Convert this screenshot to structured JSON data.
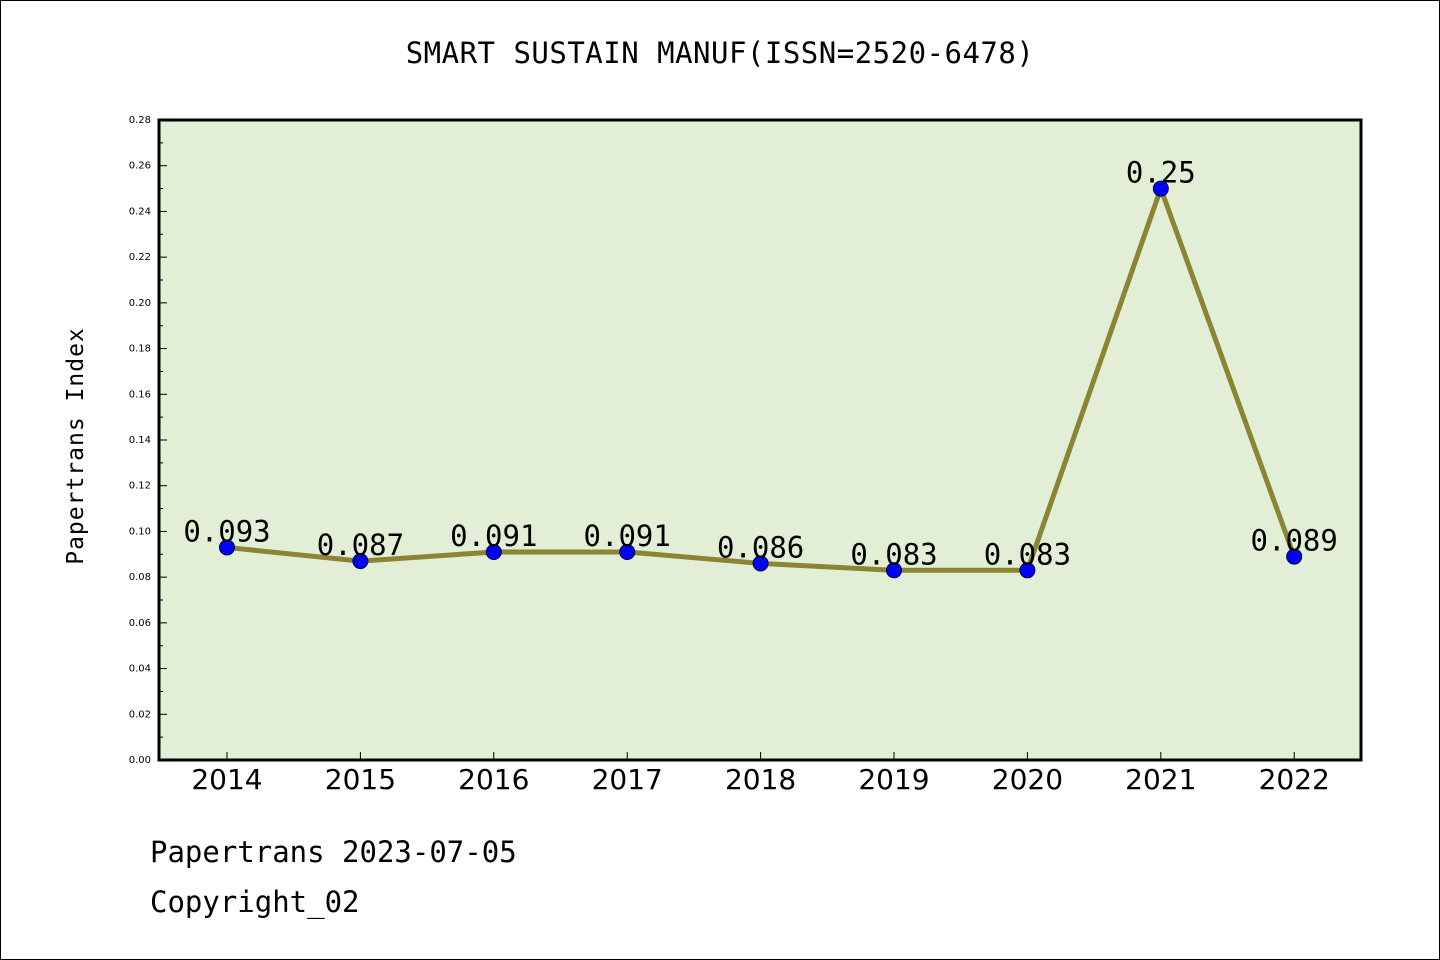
{
  "chart_data": {
    "type": "line",
    "title": "SMART SUSTAIN MANUF(ISSN=2520-6478)",
    "xlabel": "",
    "ylabel": "Papertrans Index",
    "categories": [
      "2014",
      "2015",
      "2016",
      "2017",
      "2018",
      "2019",
      "2020",
      "2021",
      "2022"
    ],
    "values": [
      0.093,
      0.087,
      0.091,
      0.091,
      0.086,
      0.083,
      0.083,
      0.25,
      0.089
    ],
    "data_labels": [
      "0.093",
      "0.087",
      "0.091",
      "0.091",
      "0.086",
      "0.083",
      "0.083",
      "0.25",
      "0.089"
    ],
    "ylim": [
      0,
      0.28
    ],
    "yticks": [
      "0.00",
      "0.02",
      "0.04",
      "0.06",
      "0.08",
      "0.10",
      "0.12",
      "0.14",
      "0.16",
      "0.18",
      "0.20",
      "0.22",
      "0.24",
      "0.26",
      "0.28"
    ],
    "grid": false,
    "legend": "none",
    "colors": {
      "plot_background": "#e2efd6",
      "line": "#8b8432",
      "marker": "#0000ff"
    }
  },
  "footer": {
    "source_line": "Papertrans 2023-07-05",
    "copyright": "Copyright_02"
  }
}
